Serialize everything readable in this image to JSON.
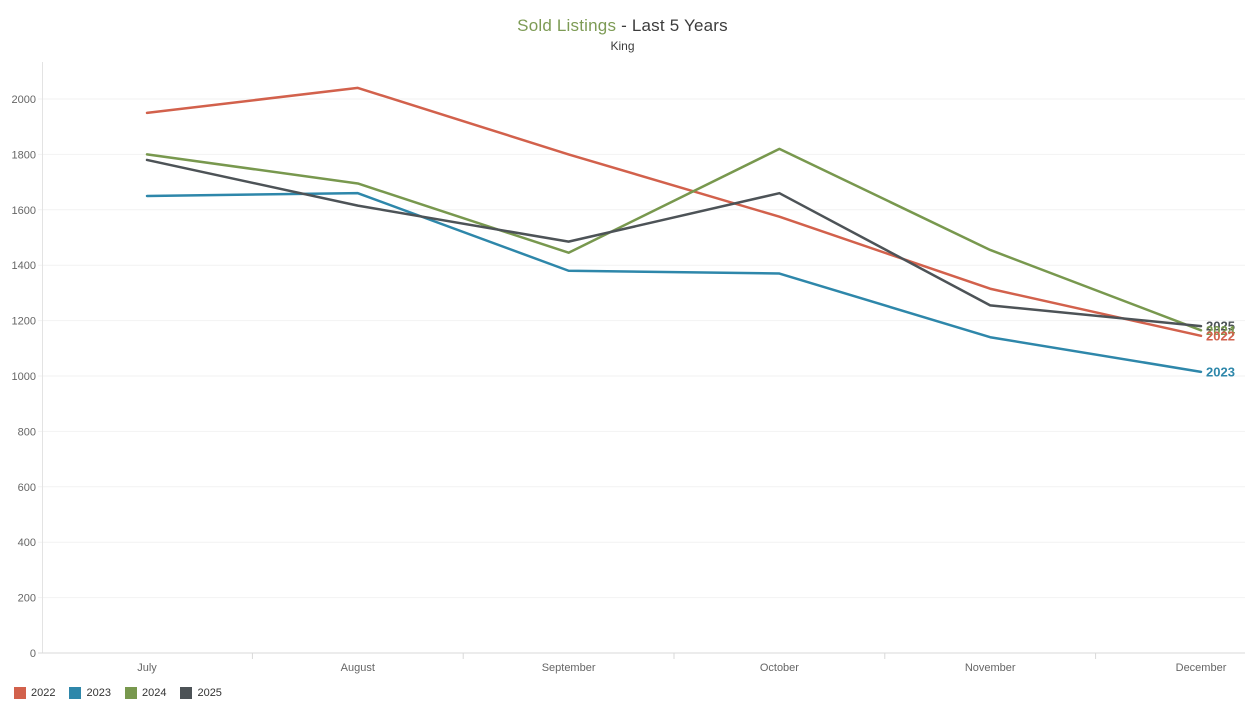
{
  "header": {
    "title_highlight": "Sold Listings",
    "title_rest": " - Last 5 Years",
    "subtitle": "King"
  },
  "chart_data": {
    "type": "line",
    "title": "Sold Listings - Last 5 Years",
    "subtitle": "King",
    "categories": [
      "July",
      "August",
      "September",
      "October",
      "November",
      "December"
    ],
    "series": [
      {
        "name": "2022",
        "color": "#d2614c",
        "values": [
          1950,
          2040,
          1800,
          1575,
          1315,
          1145
        ]
      },
      {
        "name": "2023",
        "color": "#2e87aa",
        "values": [
          1650,
          1660,
          1380,
          1370,
          1140,
          1015
        ]
      },
      {
        "name": "2024",
        "color": "#78984e",
        "values": [
          1800,
          1695,
          1445,
          1820,
          1455,
          1165
        ]
      },
      {
        "name": "2025",
        "color": "#4d5357",
        "values": [
          1780,
          1615,
          1485,
          1660,
          1255,
          1180
        ]
      }
    ],
    "xlabel": "",
    "ylabel": "",
    "ylim": [
      0,
      2150
    ],
    "yticks": [
      0,
      200,
      400,
      600,
      800,
      1000,
      1200,
      1400,
      1600,
      1800,
      2000
    ],
    "grid": "horizontal",
    "legend_position": "bottom-left",
    "series_end_labels": true
  },
  "colors": {
    "title_highlight": "#7d9b55",
    "title_text": "#3c3c3c",
    "axis_text": "#666666",
    "gridline": "#f2f2f2",
    "axis_line": "#e3e3e3",
    "baseline": "#d9d9d9",
    "tick": "#d9d9d9"
  }
}
